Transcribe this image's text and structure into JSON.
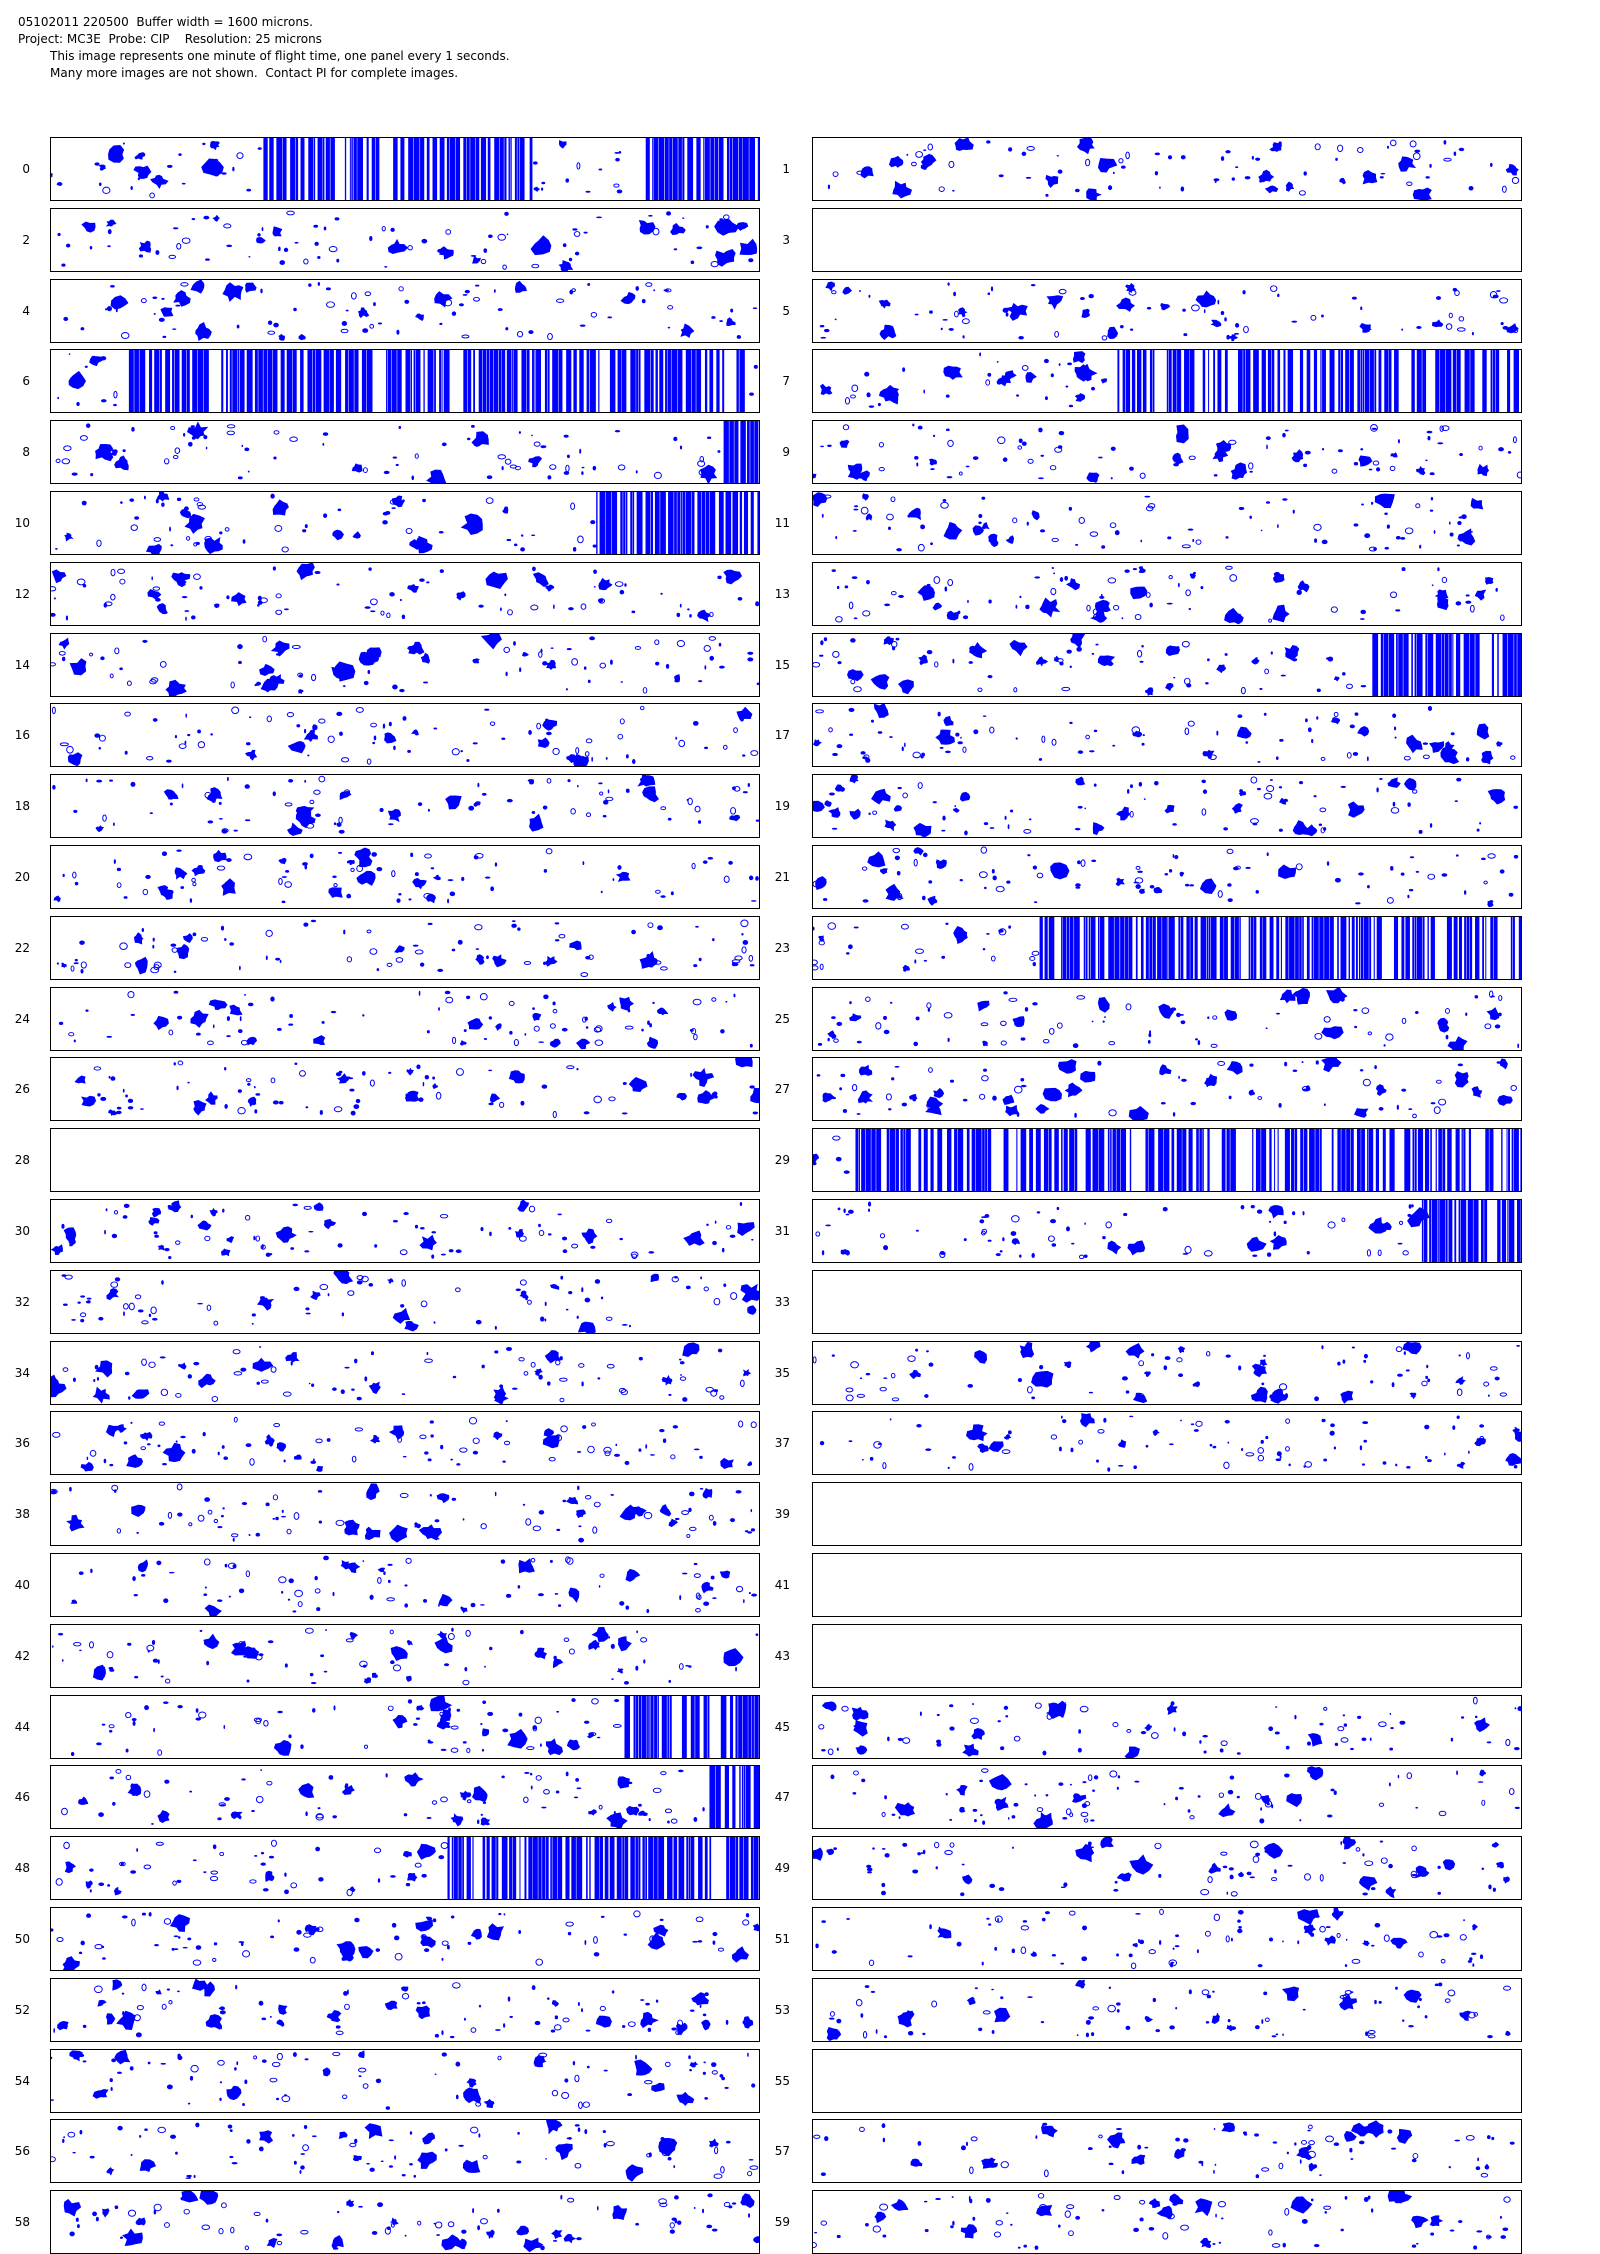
{
  "header": {
    "line1": "05102011 220500  Buffer width = 1600 microns.",
    "line2": "Project: MC3E  Probe: CIP    Resolution: 25 microns",
    "line3": "This image represents one minute of flight time, one panel every 1 seconds.",
    "line4": "Many more images are not shown.  Contact PI for complete images."
  },
  "colors": {
    "particle": "#0000ff",
    "border": "#000000",
    "background": "#ffffff"
  },
  "panels": [
    {
      "n": "0",
      "content": "mixed",
      "bands": [
        [
          0.3,
          0.68
        ],
        [
          0.84,
          1.0
        ]
      ]
    },
    {
      "n": "1",
      "content": "particles"
    },
    {
      "n": "2",
      "content": "particles"
    },
    {
      "n": "3",
      "content": "empty"
    },
    {
      "n": "4",
      "content": "particles"
    },
    {
      "n": "5",
      "content": "particles"
    },
    {
      "n": "6",
      "content": "mixed",
      "bands": [
        [
          0.11,
          0.98
        ]
      ]
    },
    {
      "n": "7",
      "content": "mixed",
      "bands": [
        [
          0.43,
          1.0
        ]
      ]
    },
    {
      "n": "8",
      "content": "mixed",
      "bands": [
        [
          0.95,
          1.0
        ]
      ]
    },
    {
      "n": "9",
      "content": "particles"
    },
    {
      "n": "10",
      "content": "mixed",
      "bands": [
        [
          0.77,
          1.0
        ]
      ]
    },
    {
      "n": "11",
      "content": "particles"
    },
    {
      "n": "12",
      "content": "particles"
    },
    {
      "n": "13",
      "content": "particles"
    },
    {
      "n": "14",
      "content": "particles"
    },
    {
      "n": "15",
      "content": "mixed",
      "bands": [
        [
          0.79,
          1.0
        ]
      ]
    },
    {
      "n": "16",
      "content": "particles"
    },
    {
      "n": "17",
      "content": "particles"
    },
    {
      "n": "18",
      "content": "particles"
    },
    {
      "n": "19",
      "content": "particles"
    },
    {
      "n": "20",
      "content": "particles"
    },
    {
      "n": "21",
      "content": "particles"
    },
    {
      "n": "22",
      "content": "particles"
    },
    {
      "n": "23",
      "content": "mixed",
      "bands": [
        [
          0.32,
          1.0
        ]
      ]
    },
    {
      "n": "24",
      "content": "particles"
    },
    {
      "n": "25",
      "content": "particles"
    },
    {
      "n": "26",
      "content": "particles"
    },
    {
      "n": "27",
      "content": "particles"
    },
    {
      "n": "28",
      "content": "empty"
    },
    {
      "n": "29",
      "content": "mixed",
      "bands": [
        [
          0.06,
          1.0
        ]
      ]
    },
    {
      "n": "30",
      "content": "particles"
    },
    {
      "n": "31",
      "content": "mixed",
      "bands": [
        [
          0.86,
          1.0
        ]
      ]
    },
    {
      "n": "32",
      "content": "particles"
    },
    {
      "n": "33",
      "content": "empty"
    },
    {
      "n": "34",
      "content": "particles"
    },
    {
      "n": "35",
      "content": "particles"
    },
    {
      "n": "36",
      "content": "particles"
    },
    {
      "n": "37",
      "content": "particles"
    },
    {
      "n": "38",
      "content": "particles"
    },
    {
      "n": "39",
      "content": "empty"
    },
    {
      "n": "40",
      "content": "particles"
    },
    {
      "n": "41",
      "content": "empty"
    },
    {
      "n": "42",
      "content": "particles"
    },
    {
      "n": "43",
      "content": "empty"
    },
    {
      "n": "44",
      "content": "mixed",
      "bands": [
        [
          0.81,
          1.0
        ]
      ]
    },
    {
      "n": "45",
      "content": "particles"
    },
    {
      "n": "46",
      "content": "mixed",
      "bands": [
        [
          0.93,
          1.0
        ]
      ]
    },
    {
      "n": "47",
      "content": "particles"
    },
    {
      "n": "48",
      "content": "mixed",
      "bands": [
        [
          0.56,
          1.0
        ]
      ]
    },
    {
      "n": "49",
      "content": "particles"
    },
    {
      "n": "50",
      "content": "particles"
    },
    {
      "n": "51",
      "content": "particles"
    },
    {
      "n": "52",
      "content": "particles"
    },
    {
      "n": "53",
      "content": "particles"
    },
    {
      "n": "54",
      "content": "particles"
    },
    {
      "n": "55",
      "content": "empty"
    },
    {
      "n": "56",
      "content": "particles"
    },
    {
      "n": "57",
      "content": "particles"
    },
    {
      "n": "58",
      "content": "particles"
    },
    {
      "n": "59",
      "content": "particles"
    }
  ]
}
